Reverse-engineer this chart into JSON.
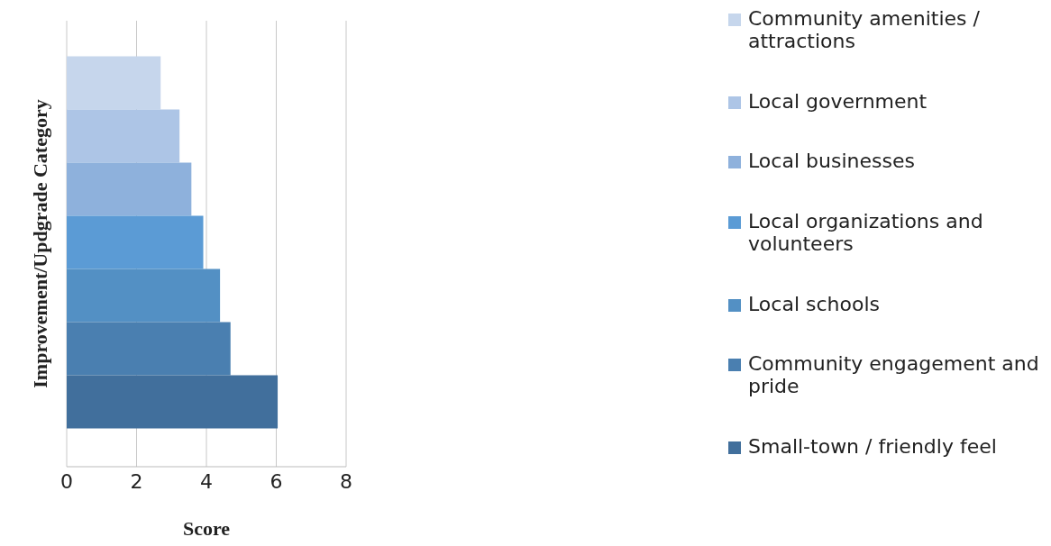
{
  "chart_data": {
    "type": "bar",
    "orientation": "horizontal",
    "xlabel": "Score",
    "ylabel": "Improvement/Updgrade Category",
    "categories": [
      null
    ],
    "series": [
      {
        "name": "Community amenities / attractions",
        "color": "#c6d6ec",
        "values": [
          2.69
        ]
      },
      {
        "name": "Local government",
        "color": "#adc5e6",
        "values": [
          3.23
        ]
      },
      {
        "name": "Local businesses",
        "color": "#8eb1dc",
        "values": [
          3.57
        ]
      },
      {
        "name": "Local organizations and volunteers",
        "color": "#5b9bd5",
        "values": [
          3.91
        ]
      },
      {
        "name": "Local schools",
        "color": "#5390c4",
        "values": [
          4.39
        ]
      },
      {
        "name": "Community engagement and pride",
        "color": "#4a7fb0",
        "values": [
          4.69
        ]
      },
      {
        "name": "Small-town / friendly feel",
        "color": "#416f9c",
        "values": [
          6.04
        ]
      }
    ],
    "xlim": [
      0,
      8
    ],
    "xticks": [
      0,
      2,
      4,
      6,
      8
    ],
    "grid": "x",
    "legend": "right"
  }
}
